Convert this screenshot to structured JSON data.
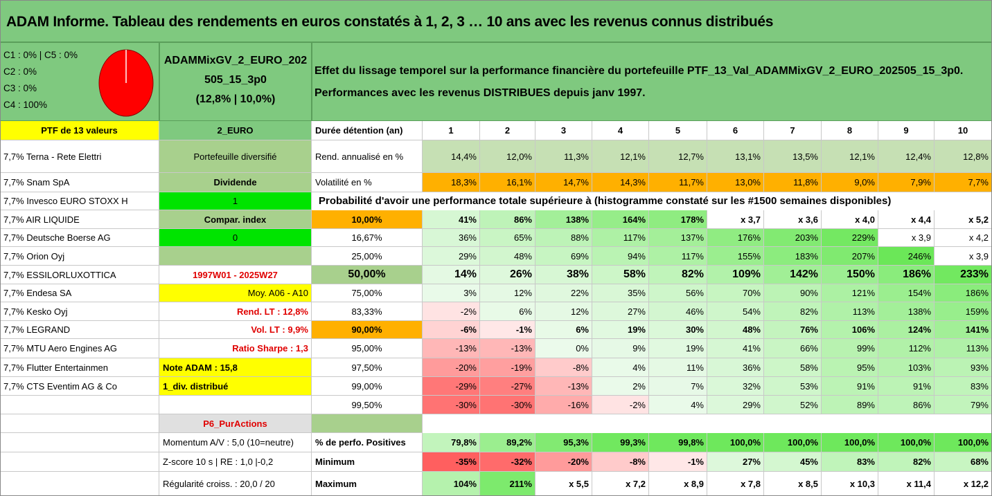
{
  "title": "ADAM Informe. Tableau des rendements en euros constatés à 1, 2, 3 … 10 ans avec les revenus connus distribués",
  "classes": [
    "C1 : 0% | C5 : 0%",
    "C2 : 0%",
    "C3 : 0%",
    "C4 : 100%"
  ],
  "pie": {
    "color": "#ff0000",
    "c4_share": 1.0
  },
  "fund": {
    "name_line1": "ADAMMixGV_2_EURO_202",
    "name_line2": "505_15_3p0",
    "stats": "(12,8% | 10,0%)"
  },
  "description": {
    "line1": "Effet du lissage temporel sur la performance financière du portefeuille PTF_13_Val_ADAMMixGV_2_EURO_202505_15_3p0.",
    "line2": "Performances avec les revenus DISTRIBUES depuis janv 1997."
  },
  "ptf_header": "PTF de 13 valeurs",
  "currency": "2_EURO",
  "duration_label": "Durée détention (an)",
  "years": [
    "1",
    "2",
    "3",
    "4",
    "5",
    "6",
    "7",
    "8",
    "9",
    "10"
  ],
  "holdings": [
    "7,7% Terna - Rete Elettri",
    "7,7% Snam SpA",
    "7,7% Invesco EURO STOXX H",
    "7,7% AIR LIQUIDE",
    "7,7% Deutsche Boerse AG",
    "7,7% Orion Oyj",
    "7,7% ESSILORLUXOTTICA",
    "7,7% Endesa SA",
    "7,7% Kesko Oyj",
    "7,7% LEGRAND",
    "7,7% MTU Aero Engines AG",
    "7,7% Flutter Entertainmen",
    "7,7% CTS Eventim AG & Co"
  ],
  "sidebar": [
    "Portefeuille diversifié",
    "Dividende",
    "1",
    "Compar. index",
    "0",
    "",
    "1997W01 - 2025W27",
    "Moy. A06 - A10",
    "Rend. LT : 12,8%",
    "Vol. LT : 9,9%",
    "Ratio Sharpe : 1,3",
    "Note ADAM : 15,8",
    "1_div. distribué"
  ],
  "returns": {
    "label": "Rend. annualisé en %",
    "values": [
      "14,4%",
      "12,0%",
      "11,3%",
      "12,1%",
      "12,7%",
      "13,1%",
      "13,5%",
      "12,1%",
      "12,4%",
      "12,8%"
    ]
  },
  "volatility": {
    "label": "Volatilité en %",
    "values": [
      "18,3%",
      "16,1%",
      "14,7%",
      "14,3%",
      "11,7%",
      "13,0%",
      "11,8%",
      "9,0%",
      "7,9%",
      "7,7%"
    ]
  },
  "probability_title": "Probabilité d'avoir une performance totale supérieure à (histogramme constaté sur les #1500 semaines disponibles)",
  "prob_rows": [
    {
      "p": "10,00%",
      "values": [
        "41%",
        "86%",
        "138%",
        "164%",
        "178%",
        "x 3,7",
        "x 3,6",
        "x 4,0",
        "x 4,4",
        "x 5,2"
      ]
    },
    {
      "p": "16,67%",
      "values": [
        "36%",
        "65%",
        "88%",
        "117%",
        "137%",
        "176%",
        "203%",
        "229%",
        "x 3,9",
        "x 4,2"
      ]
    },
    {
      "p": "25,00%",
      "values": [
        "29%",
        "48%",
        "69%",
        "94%",
        "117%",
        "155%",
        "183%",
        "207%",
        "246%",
        "x 3,9"
      ]
    },
    {
      "p": "50,00%",
      "values": [
        "14%",
        "26%",
        "38%",
        "58%",
        "82%",
        "109%",
        "142%",
        "150%",
        "186%",
        "233%"
      ]
    },
    {
      "p": "75,00%",
      "values": [
        "3%",
        "12%",
        "22%",
        "35%",
        "56%",
        "70%",
        "90%",
        "121%",
        "154%",
        "186%"
      ]
    },
    {
      "p": "83,33%",
      "values": [
        "-2%",
        "6%",
        "12%",
        "27%",
        "46%",
        "54%",
        "82%",
        "113%",
        "138%",
        "159%"
      ]
    },
    {
      "p": "90,00%",
      "values": [
        "-6%",
        "-1%",
        "6%",
        "19%",
        "30%",
        "48%",
        "76%",
        "106%",
        "124%",
        "141%"
      ]
    },
    {
      "p": "95,00%",
      "values": [
        "-13%",
        "-13%",
        "0%",
        "9%",
        "19%",
        "41%",
        "66%",
        "99%",
        "112%",
        "113%"
      ]
    },
    {
      "p": "97,50%",
      "values": [
        "-20%",
        "-19%",
        "-8%",
        "4%",
        "11%",
        "36%",
        "58%",
        "95%",
        "103%",
        "93%"
      ]
    },
    {
      "p": "99,00%",
      "values": [
        "-29%",
        "-27%",
        "-13%",
        "2%",
        "7%",
        "32%",
        "53%",
        "91%",
        "91%",
        "83%"
      ]
    },
    {
      "p": "99,50%",
      "values": [
        "-30%",
        "-30%",
        "-16%",
        "-2%",
        "4%",
        "29%",
        "52%",
        "89%",
        "86%",
        "79%"
      ]
    }
  ],
  "p6_label": "P6_PurActions",
  "bottom_rows": [
    {
      "side": "Momentum A/V : 5,0 (10=neutre)",
      "label": "% de perfo. Positives",
      "values": [
        "79,8%",
        "89,2%",
        "95,3%",
        "99,3%",
        "99,8%",
        "100,0%",
        "100,0%",
        "100,0%",
        "100,0%",
        "100,0%"
      ]
    },
    {
      "side": "Z-score 10 s | RE : 1,0 |-0,2",
      "label": "Minimum",
      "values": [
        "-35%",
        "-32%",
        "-20%",
        "-8%",
        "-1%",
        "27%",
        "45%",
        "83%",
        "82%",
        "68%"
      ]
    },
    {
      "side": "Régularité croiss. : 20,0 / 20",
      "label": "Maximum",
      "values": [
        "104%",
        "211%",
        "x 5,5",
        "x 7,2",
        "x 8,9",
        "x 7,8",
        "x 8,5",
        "x 10,3",
        "x 11,4",
        "x 12,2"
      ]
    }
  ],
  "colors": {
    "title_green": "#7fc97f",
    "header_yellow": "#ffff00",
    "bright_green": "#00e400",
    "orange": "#ffb000",
    "sage": "#a8d08d",
    "light_sage": "#c6e0b4",
    "red_text": "#e00000"
  }
}
